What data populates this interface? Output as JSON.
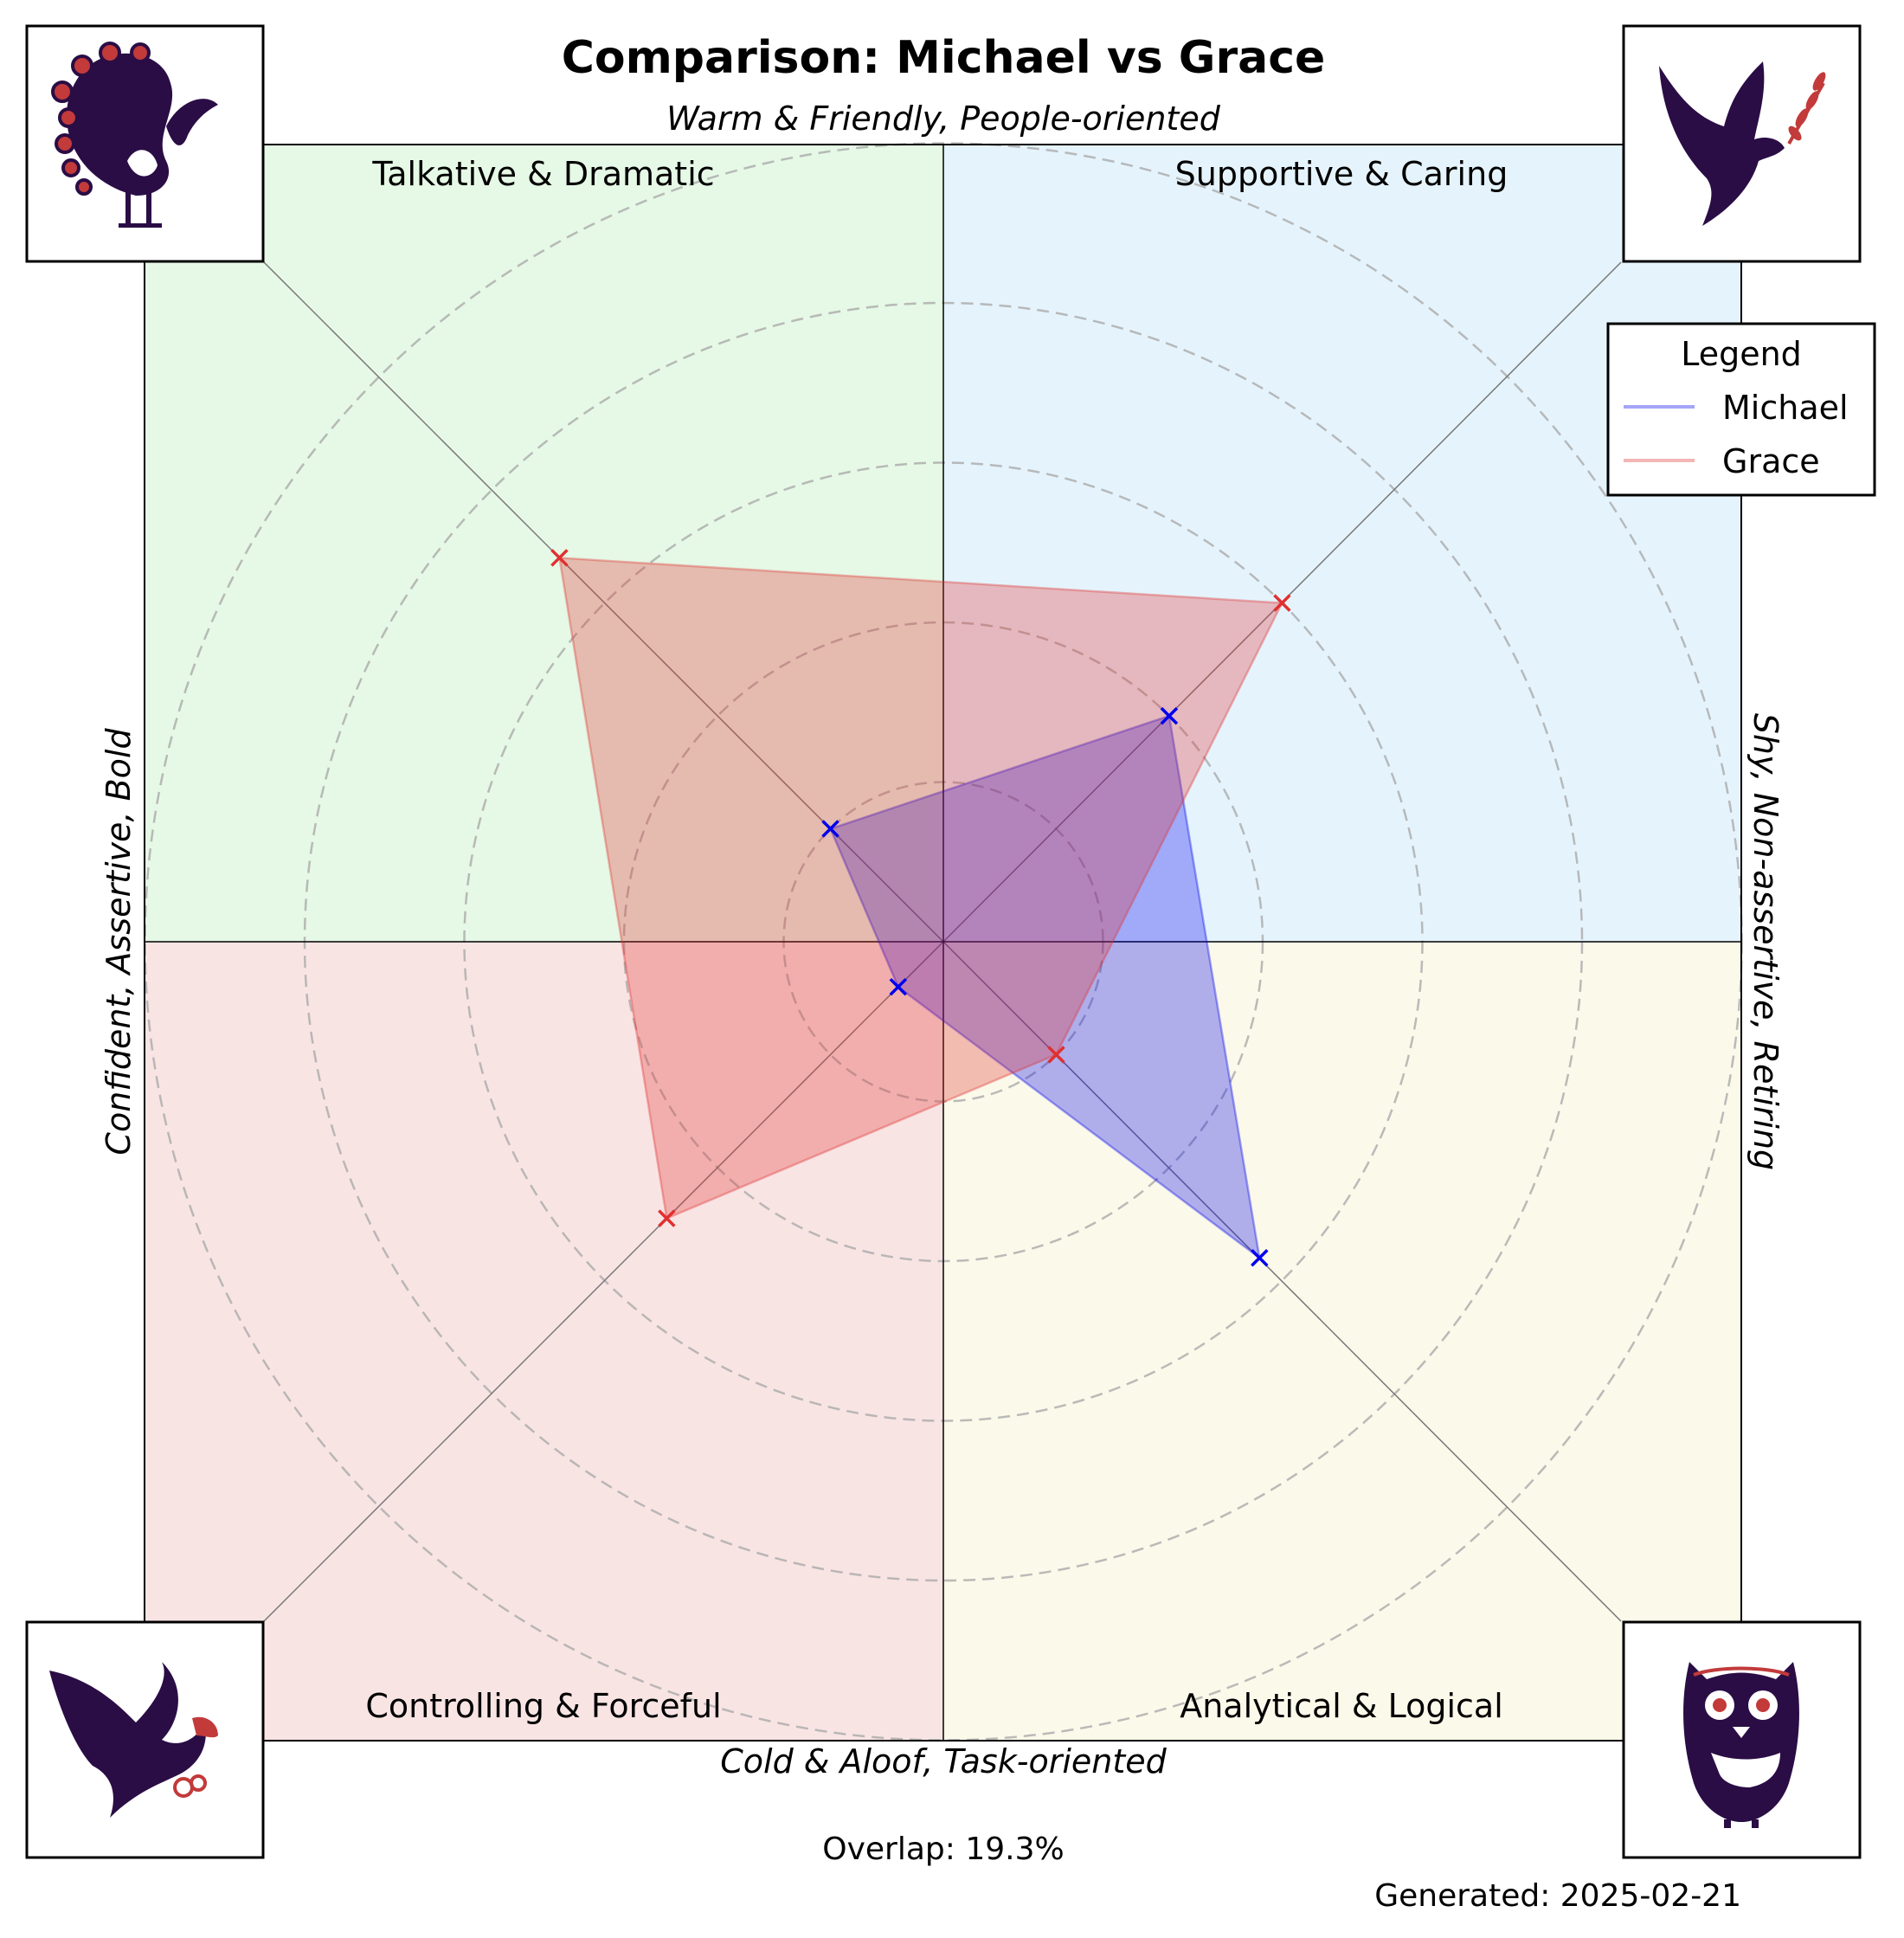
{
  "chart_data": {
    "type": "radar",
    "title": "Comparison: Michael vs Grace",
    "axis_labels": {
      "top": "Warm & Friendly, People-oriented",
      "bottom": "Cold & Aloof, Task-oriented",
      "left": "Confident, Assertive, Bold",
      "right": "Shy, Non-assertive, Retiring"
    },
    "quadrants": [
      {
        "position": "top-left",
        "label": "Talkative & Dramatic",
        "color": "#e6f8e6",
        "icon": "peacock-icon"
      },
      {
        "position": "top-right",
        "label": "Supportive & Caring",
        "color": "#e5f4fc",
        "icon": "dove-icon"
      },
      {
        "position": "bottom-left",
        "label": "Controlling & Forceful",
        "color": "#f9e4e4",
        "icon": "eagle-icon"
      },
      {
        "position": "bottom-right",
        "label": "Analytical & Logical",
        "color": "#fbf9ea",
        "icon": "owl-icon"
      }
    ],
    "axes": [
      "Supportive & Caring",
      "Talkative & Dramatic",
      "Controlling & Forceful",
      "Analytical & Logical"
    ],
    "rlim": [
      0,
      5
    ],
    "rings": [
      1,
      2,
      3,
      4,
      5
    ],
    "grid": true,
    "series": [
      {
        "name": "Michael",
        "color": "#0000ee",
        "values": [
          2.0,
          1.0,
          0.4,
          2.8
        ]
      },
      {
        "name": "Grace",
        "color": "#e03030",
        "values": [
          3.0,
          3.4,
          2.45,
          1.0
        ]
      }
    ],
    "legend": {
      "title": "Legend",
      "position": "top-right"
    },
    "overlap_text": "Overlap: 19.3%",
    "generated_text": "Generated: 2025-02-21"
  }
}
